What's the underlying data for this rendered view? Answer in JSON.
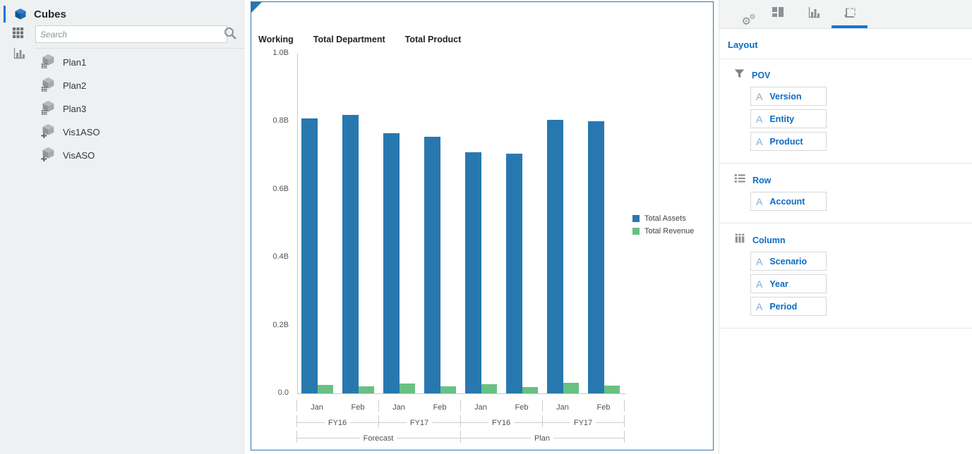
{
  "sidebar": {
    "title": "Cubes",
    "search": {
      "placeholder": "Search"
    },
    "items": [
      {
        "label": "Plan1",
        "icon": "cube-grid"
      },
      {
        "label": "Plan2",
        "icon": "cube-grid"
      },
      {
        "label": "Plan3",
        "icon": "cube-grid"
      },
      {
        "label": "Vis1ASO",
        "icon": "cube-plus"
      },
      {
        "label": "VisASO",
        "icon": "cube-plus"
      }
    ]
  },
  "chart_panel": {
    "pov_labels": [
      "Working",
      "Total Department",
      "Total Product"
    ]
  },
  "chart_data": {
    "type": "bar",
    "title": "",
    "grid": false,
    "legend_position": "right",
    "y_axis": {
      "ticks": [
        "1.0B",
        "0.8B",
        "0.6B",
        "0.4B",
        "0.2B",
        "0.0"
      ],
      "min": 0,
      "max": 1.0,
      "unit": "B"
    },
    "x_axis": {
      "levels": [
        {
          "name": "Period",
          "labels": [
            "Jan",
            "Feb",
            "Jan",
            "Feb",
            "Jan",
            "Feb",
            "Jan",
            "Feb"
          ],
          "spans": [
            1,
            1,
            1,
            1,
            1,
            1,
            1,
            1
          ],
          "lines": false
        },
        {
          "name": "Year",
          "labels": [
            "FY16",
            "FY17",
            "FY16",
            "FY17"
          ],
          "spans": [
            2,
            2,
            2,
            2
          ],
          "lines": true
        },
        {
          "name": "Scenario",
          "labels": [
            "Forecast",
            "Plan"
          ],
          "spans": [
            4,
            4
          ],
          "lines": true
        }
      ]
    },
    "series": [
      {
        "name": "Total Assets",
        "color": "#2878b0",
        "values": [
          0.81,
          0.82,
          0.765,
          0.755,
          0.71,
          0.705,
          0.805,
          0.8
        ]
      },
      {
        "name": "Total Revenue",
        "color": "#68c182",
        "values": [
          0.025,
          0.02,
          0.029,
          0.021,
          0.026,
          0.018,
          0.031,
          0.022
        ]
      }
    ]
  },
  "layout_panel": {
    "tabs": [
      {
        "icon": "gears",
        "selected": false
      },
      {
        "icon": "tiles",
        "selected": false
      },
      {
        "icon": "bar-chart",
        "selected": false
      },
      {
        "icon": "canvas-layout",
        "selected": true
      }
    ],
    "title": "Layout",
    "type_letter": "A",
    "sections": [
      {
        "icon": "filter",
        "label": "POV",
        "items": [
          "Version",
          "Entity",
          "Product"
        ]
      },
      {
        "icon": "list-rows",
        "label": "Row",
        "items": [
          "Account"
        ]
      },
      {
        "icon": "columns",
        "label": "Column",
        "items": [
          "Scenario",
          "Year",
          "Period"
        ]
      }
    ]
  }
}
